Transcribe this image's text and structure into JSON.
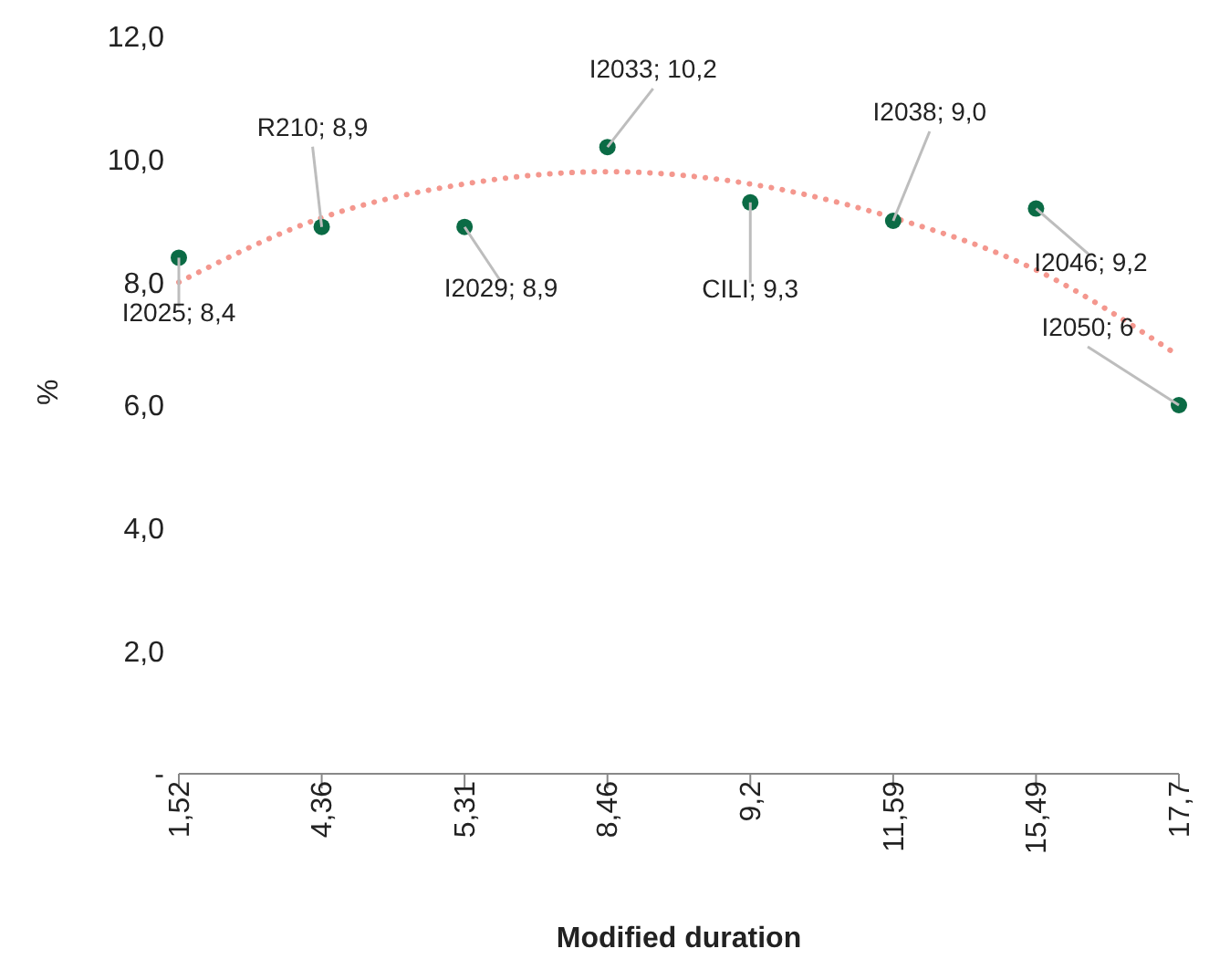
{
  "chart_data": {
    "type": "scatter",
    "xlabel": "Modified duration",
    "ylabel": "%",
    "categories": [
      "1,52",
      "4,36",
      "5,31",
      "8,46",
      "9,2",
      "11,59",
      "15,49",
      "17,7"
    ],
    "series": [
      {
        "color": "#0b6b45",
        "marker": "circle",
        "values": [
          8.4,
          8.9,
          8.9,
          10.2,
          9.3,
          9.0,
          9.2,
          6.0
        ],
        "value_labels": [
          "I2025;  8,4",
          "R210;  8,9",
          "I2029;  8,9",
          "I2033;  10,2",
          "CILI;  9,3",
          "I2038;  9,0",
          "I2046;  9,2",
          "I2050; 6"
        ]
      },
      {
        "type": "line",
        "color": "#f4978e",
        "line_style": "dotted",
        "marker": "none",
        "x": [
          "1,52",
          "4,36",
          "5,31",
          "8,46",
          "9,2",
          "11,59",
          "15,49",
          "17,7"
        ],
        "values": [
          8.0,
          9.05,
          9.6,
          9.8,
          9.6,
          9.05,
          8.2,
          6.8
        ]
      }
    ],
    "ylim": [
      0,
      12
    ],
    "yticks": [
      {
        "value": 0,
        "label": "-"
      },
      {
        "value": 2,
        "label": "2,0"
      },
      {
        "value": 4,
        "label": "4,0"
      },
      {
        "value": 6,
        "label": "6,0"
      },
      {
        "value": 8,
        "label": "8,0"
      },
      {
        "value": 10,
        "label": "10,0"
      },
      {
        "value": 12,
        "label": "12,0"
      }
    ],
    "grid": false,
    "legend": false
  }
}
